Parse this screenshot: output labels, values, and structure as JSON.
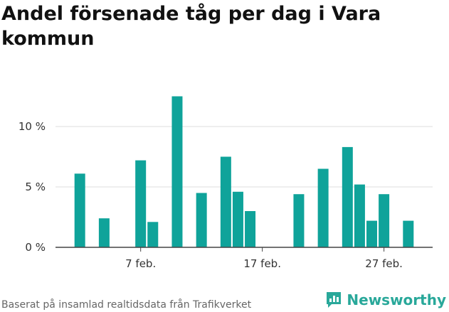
{
  "title": "Andel försenade tåg per dag i Vara kommun",
  "footer": "Baserat på insamlad realtidsdata från Trafikverket",
  "brand": "Newsworthy",
  "colors": {
    "bar": "#0fa39a",
    "grid": "#dddddd",
    "axis": "#444444",
    "brand": "#29a89a"
  },
  "chart_data": {
    "type": "bar",
    "title": "Andel försenade tåg per dag i Vara kommun",
    "xlabel": "",
    "ylabel": "",
    "ylim": [
      0,
      14
    ],
    "yticks": [
      0,
      5,
      10
    ],
    "ytick_labels": [
      "0 %",
      "5 %",
      "10 %"
    ],
    "xtick_days": [
      7,
      17,
      27
    ],
    "xtick_labels": [
      "7 feb.",
      "17 feb.",
      "27 feb."
    ],
    "days": [
      2,
      4,
      7,
      8,
      10,
      12,
      14,
      15,
      16,
      20,
      22,
      24,
      25,
      26,
      27,
      29
    ],
    "values": [
      6.1,
      2.4,
      7.2,
      2.1,
      12.5,
      4.5,
      7.5,
      4.6,
      3.0,
      4.4,
      6.5,
      8.3,
      5.2,
      2.2,
      4.4,
      2.2
    ],
    "grid": true
  }
}
